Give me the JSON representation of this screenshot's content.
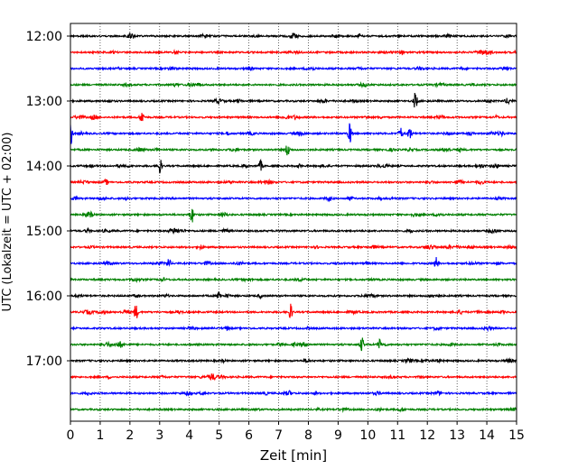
{
  "chart_data": {
    "type": "line",
    "xlabel": "Zeit  [min]",
    "ylabel": "UTC (Lokalzeit = UTC + 02:00)",
    "xlim": [
      0,
      15
    ],
    "xticks": [
      "0",
      "1",
      "2",
      "3",
      "4",
      "5",
      "6",
      "7",
      "8",
      "9",
      "10",
      "11",
      "12",
      "13",
      "14",
      "15"
    ],
    "yticks": [
      "12:00",
      "13:00",
      "14:00",
      "15:00",
      "16:00",
      "17:00"
    ],
    "grid": "vertical dotted",
    "trace_colors": [
      "#000000",
      "#ff0000",
      "#0000ff",
      "#008000"
    ],
    "trace_times": [
      "12:00",
      "12:15",
      "12:30",
      "12:45",
      "13:00",
      "13:15",
      "13:30",
      "13:45",
      "14:00",
      "14:15",
      "14:30",
      "14:45",
      "15:00",
      "15:15",
      "15:30",
      "15:45",
      "16:00",
      "16:15",
      "16:30",
      "16:45",
      "17:00",
      "17:15",
      "17:30",
      "17:45"
    ],
    "events": [
      {
        "trace": "13:00",
        "minute": 11.6,
        "amplitude": 1.0
      },
      {
        "trace": "13:15",
        "minute": 2.4,
        "amplitude": 0.8
      },
      {
        "trace": "13:30",
        "minute": 0.0,
        "amplitude": 1.6
      },
      {
        "trace": "13:30",
        "minute": 9.4,
        "amplitude": 1.2
      },
      {
        "trace": "13:30",
        "minute": 11.1,
        "amplitude": 0.7
      },
      {
        "trace": "13:30",
        "minute": 11.4,
        "amplitude": 0.8
      },
      {
        "trace": "13:45",
        "minute": 7.3,
        "amplitude": 0.8
      },
      {
        "trace": "14:00",
        "minute": 3.0,
        "amplitude": 1.0
      },
      {
        "trace": "14:00",
        "minute": 6.4,
        "amplitude": 0.6
      },
      {
        "trace": "14:45",
        "minute": 4.1,
        "amplitude": 0.8
      },
      {
        "trace": "15:30",
        "minute": 3.3,
        "amplitude": 0.6
      },
      {
        "trace": "15:30",
        "minute": 12.3,
        "amplitude": 0.7
      },
      {
        "trace": "16:00",
        "minute": 5.0,
        "amplitude": 0.6
      },
      {
        "trace": "16:15",
        "minute": 2.2,
        "amplitude": 0.9
      },
      {
        "trace": "16:15",
        "minute": 7.4,
        "amplitude": 0.9
      },
      {
        "trace": "16:45",
        "minute": 9.8,
        "amplitude": 0.8
      },
      {
        "trace": "16:45",
        "minute": 10.4,
        "amplitude": 0.6
      }
    ]
  }
}
